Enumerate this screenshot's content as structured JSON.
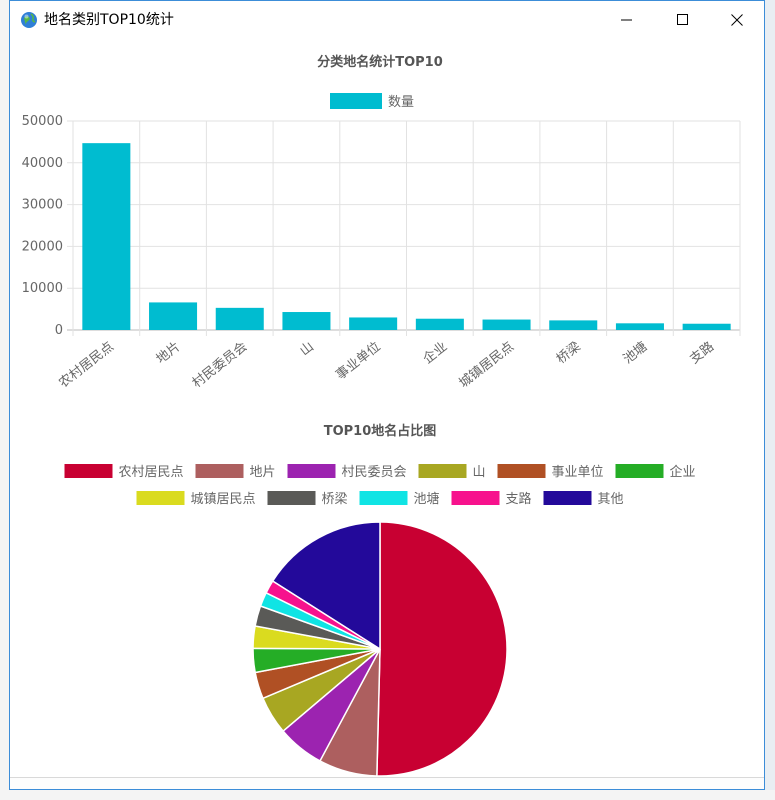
{
  "window": {
    "title": "地名类别TOP10统计",
    "icon": "globe-icon",
    "controls": [
      "minimize-icon",
      "maximize-icon",
      "close-icon"
    ]
  },
  "colors": {
    "bar": "#00bcd0",
    "grid": "#e2e2e2",
    "axis_text": "#666666",
    "title_text": "#555555"
  },
  "chart_data": [
    {
      "type": "bar",
      "title": "分类地名统计TOP10",
      "legend": [
        "数量"
      ],
      "legend_position": "top-center",
      "categories": [
        "农村居民点",
        "地片",
        "村民委员会",
        "山",
        "事业单位",
        "企业",
        "城镇居民点",
        "桥梁",
        "池塘",
        "支路"
      ],
      "series": [
        {
          "name": "数量",
          "values": [
            44700,
            6600,
            5300,
            4300,
            3000,
            2700,
            2500,
            2300,
            1600,
            1500
          ]
        }
      ],
      "yticks": [
        "0",
        "10000",
        "20000",
        "30000",
        "40000",
        "50000"
      ],
      "ylim": [
        0,
        50000
      ],
      "grid": true
    },
    {
      "type": "pie",
      "title": "TOP10地名占比图",
      "legend_position": "top-center",
      "labels": [
        "农村居民点",
        "地片",
        "村民委员会",
        "山",
        "事业单位",
        "企业",
        "城镇居民点",
        "桥梁",
        "池塘",
        "支路",
        "其他"
      ],
      "values": [
        44700,
        6600,
        5300,
        4300,
        3000,
        2700,
        2500,
        2300,
        1600,
        1500,
        14200
      ],
      "colors": [
        "#c80032",
        "#ad5f5f",
        "#9c23b0",
        "#a8a722",
        "#b05024",
        "#25ad26",
        "#dadb1f",
        "#5a5a57",
        "#10e4e4",
        "#f7128d",
        "#23099a"
      ]
    }
  ]
}
